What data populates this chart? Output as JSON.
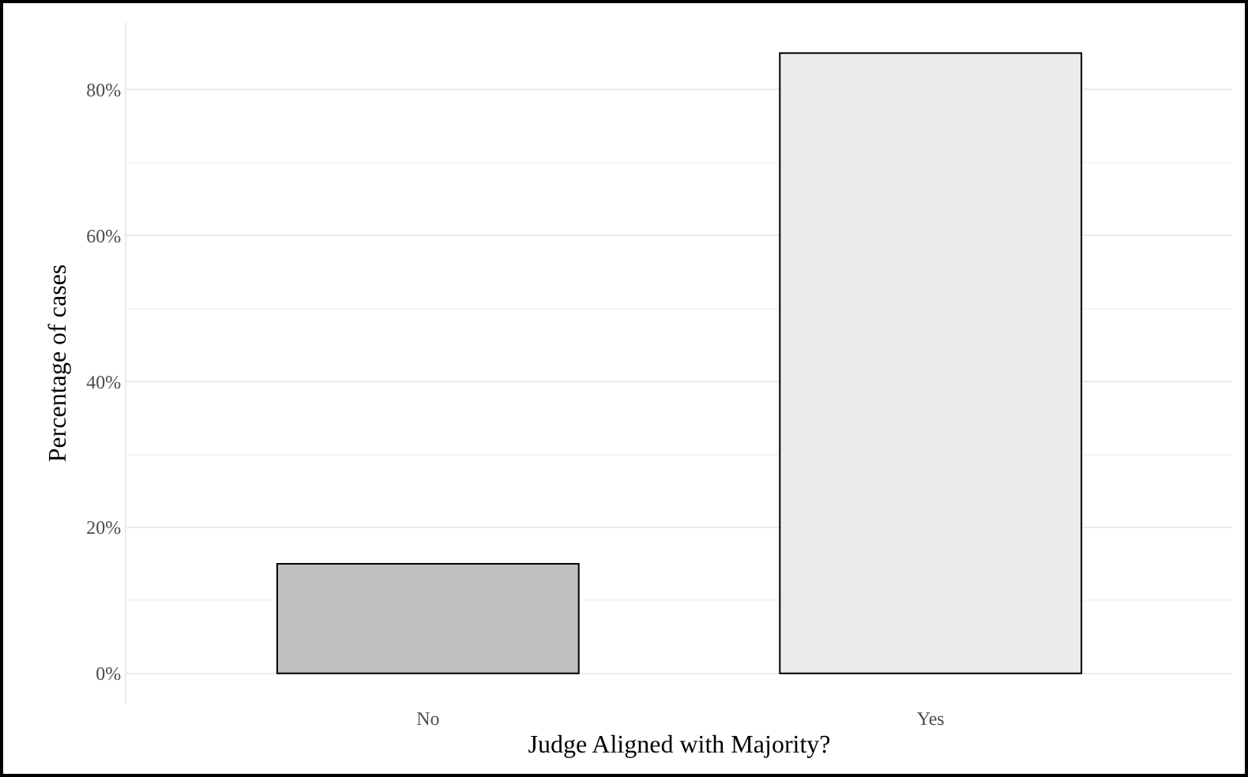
{
  "chart_data": {
    "type": "bar",
    "xlabel": "Judge Aligned with Majority?",
    "ylabel": "Percentage of cases",
    "categories": [
      "No",
      "Yes"
    ],
    "values": [
      15,
      85
    ],
    "colors": [
      "#c0c0c0",
      "#ebebeb"
    ],
    "ylim": [
      -4.25,
      89.25
    ],
    "yticks": [
      {
        "value": 0,
        "label": "0%"
      },
      {
        "value": 20,
        "label": "20%"
      },
      {
        "value": 40,
        "label": "40%"
      },
      {
        "value": 60,
        "label": "60%"
      },
      {
        "value": 80,
        "label": "80%"
      }
    ],
    "grid": "y"
  }
}
